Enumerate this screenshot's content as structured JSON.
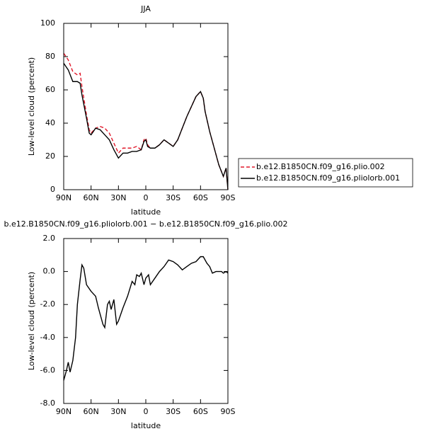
{
  "chart_data": [
    {
      "type": "line",
      "title": "JJA",
      "xlabel": "latitude",
      "ylabel": "Low-level cloud (percent)",
      "x": [
        90,
        85,
        80,
        75,
        72,
        70,
        65,
        62,
        60,
        55,
        50,
        45,
        40,
        35,
        30,
        25,
        20,
        15,
        10,
        5,
        2,
        0,
        -2,
        -5,
        -10,
        -15,
        -20,
        -25,
        -30,
        -35,
        -40,
        -45,
        -50,
        -55,
        -60,
        -63,
        -65,
        -70,
        -75,
        -80,
        -85,
        -88,
        -90
      ],
      "series": [
        {
          "name": "b.e12.B1850CN.f09_g16.plio.002",
          "color": "#e0182a",
          "dashed": true,
          "values": [
            82,
            78,
            71,
            69,
            70,
            62,
            45,
            36,
            34,
            37,
            38,
            37,
            34,
            28,
            22,
            25,
            25,
            25,
            26,
            24,
            30,
            31,
            27,
            25,
            25,
            27,
            30,
            28,
            26,
            30,
            37,
            44,
            50,
            56,
            59,
            55,
            47,
            35,
            25,
            15,
            8,
            13,
            0
          ]
        },
        {
          "name": "b.e12.B1850CN.f09_g16.pliolorb.001",
          "color": "#000000",
          "dashed": false,
          "values": [
            76,
            72,
            65,
            65,
            64,
            57,
            43,
            34,
            33,
            37,
            36,
            33,
            30,
            24,
            19,
            22,
            22,
            23,
            23,
            24,
            29,
            30,
            26,
            25,
            25,
            27,
            30,
            28,
            26,
            30,
            37,
            44,
            50,
            56,
            59,
            55,
            47,
            35,
            25,
            15,
            8,
            13,
            0
          ]
        }
      ],
      "xlim": [
        90,
        -90
      ],
      "xticks": [
        {
          "value": 90,
          "label": "90N"
        },
        {
          "value": 60,
          "label": "60N"
        },
        {
          "value": 30,
          "label": "30N"
        },
        0,
        {
          "value": -30,
          "label": "30S"
        },
        {
          "value": -60,
          "label": "60S"
        },
        {
          "value": -90,
          "label": "90S"
        }
      ],
      "ylim": [
        0,
        100
      ],
      "yticks": [
        0,
        20,
        40,
        60,
        80,
        100
      ],
      "legend": "right"
    },
    {
      "type": "line",
      "title": "b.e12.B1850CN.f09_g16.pliolorb.001 − b.e12.B1850CN.f09_g16.plio.002",
      "xlabel": "latitude",
      "ylabel": "Low-level cloud (percent)",
      "x": [
        90,
        87,
        85,
        83,
        80,
        77,
        75,
        72,
        70,
        68,
        65,
        60,
        55,
        52,
        50,
        47,
        45,
        42,
        40,
        38,
        35,
        32,
        30,
        25,
        20,
        15,
        12,
        10,
        7,
        5,
        2,
        0,
        -3,
        -5,
        -10,
        -15,
        -20,
        -25,
        -30,
        -35,
        -40,
        -45,
        -50,
        -55,
        -60,
        -63,
        -67,
        -70,
        -73,
        -77,
        -80,
        -83,
        -85,
        -88,
        -90
      ],
      "series": [
        {
          "color": "#000000",
          "dashed": false,
          "values": [
            -6.6,
            -6.0,
            -5.5,
            -6.1,
            -5.4,
            -4.0,
            -2.0,
            -0.5,
            0.4,
            0.2,
            -0.8,
            -1.2,
            -1.5,
            -2.2,
            -2.6,
            -3.2,
            -3.4,
            -2.0,
            -1.8,
            -2.3,
            -1.7,
            -3.2,
            -3.0,
            -2.2,
            -1.5,
            -0.6,
            -0.8,
            -0.2,
            -0.3,
            -0.1,
            -0.8,
            -0.4,
            -0.2,
            -0.8,
            -0.4,
            0,
            0.3,
            0.7,
            0.6,
            0.4,
            0.1,
            0.3,
            0.5,
            0.6,
            0.9,
            0.9,
            0.5,
            0.3,
            -0.1,
            0,
            0,
            0,
            -0.1,
            0,
            -0.1
          ]
        }
      ],
      "xlim": [
        90,
        -90
      ],
      "xticks": [
        {
          "value": 90,
          "label": "90N"
        },
        {
          "value": 60,
          "label": "60N"
        },
        {
          "value": 30,
          "label": "30N"
        },
        0,
        {
          "value": -30,
          "label": "30S"
        },
        {
          "value": -60,
          "label": "60S"
        },
        {
          "value": -90,
          "label": "90S"
        }
      ],
      "ylim": [
        -8,
        2
      ],
      "yticks": [
        {
          "value": -8,
          "label": "-8.0"
        },
        {
          "value": -6,
          "label": "-6.0"
        },
        {
          "value": -4,
          "label": "-4.0"
        },
        {
          "value": -2,
          "label": "-2.0"
        },
        {
          "value": 0,
          "label": "0.0"
        },
        {
          "value": 2,
          "label": "2.0"
        }
      ]
    }
  ]
}
